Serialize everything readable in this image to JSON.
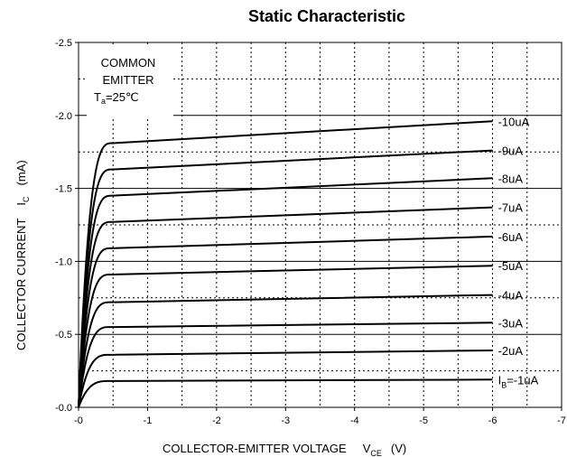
{
  "chart_data": {
    "type": "line",
    "title": "Static Characteristic",
    "xlabel": "COLLECTOR-EMITTER VOLTAGE",
    "xlabel_symbol": "V",
    "xlabel_sub": "CE",
    "xlabel_unit": "(V)",
    "ylabel": "COLLECTOR CURRENT",
    "ylabel_symbol": "I",
    "ylabel_sub": "C",
    "ylabel_unit": "(mA)",
    "xlim": [
      0,
      -7
    ],
    "ylim": [
      0,
      -2.5
    ],
    "x_ticks": [
      {
        "value": 0,
        "label": "-0"
      },
      {
        "value": -1,
        "label": "-1"
      },
      {
        "value": -2,
        "label": "-2"
      },
      {
        "value": -3,
        "label": "-3"
      },
      {
        "value": -4,
        "label": "-4"
      },
      {
        "value": -5,
        "label": "-5"
      },
      {
        "value": -6,
        "label": "-6"
      },
      {
        "value": -7,
        "label": "-7"
      }
    ],
    "y_ticks": [
      {
        "value": 0,
        "label": "-0.0"
      },
      {
        "value": -0.5,
        "label": "-0.5"
      },
      {
        "value": -1.0,
        "label": "-1.0"
      },
      {
        "value": -1.5,
        "label": "-1.5"
      },
      {
        "value": -2.0,
        "label": "-2.0"
      },
      {
        "value": -2.5,
        "label": "-2.5"
      }
    ],
    "grid": {
      "major": "solid",
      "minor": "dotted"
    },
    "annotation": {
      "line1": "COMMON",
      "line2": "EMITTER",
      "line3_symbol": "T",
      "line3_sub": "a",
      "line3_value": "=25℃"
    },
    "series": [
      {
        "name": "-1uA",
        "name_prefix": "I",
        "name_sub": "B",
        "name_suffix": "=-1uA",
        "sat": -0.18,
        "end": -0.19
      },
      {
        "name": "-2uA",
        "sat": -0.36,
        "end": -0.39
      },
      {
        "name": "-3uA",
        "sat": -0.55,
        "end": -0.58
      },
      {
        "name": "-4uA",
        "sat": -0.72,
        "end": -0.77
      },
      {
        "name": "-5uA",
        "sat": -0.91,
        "end": -0.97
      },
      {
        "name": "-6uA",
        "sat": -1.09,
        "end": -1.17
      },
      {
        "name": "-7uA",
        "sat": -1.27,
        "end": -1.37
      },
      {
        "name": "-8uA",
        "sat": -1.45,
        "end": -1.57
      },
      {
        "name": "-9uA",
        "sat": -1.63,
        "end": -1.76
      },
      {
        "name": "-10uA",
        "sat": -1.81,
        "end": -1.96
      }
    ]
  }
}
